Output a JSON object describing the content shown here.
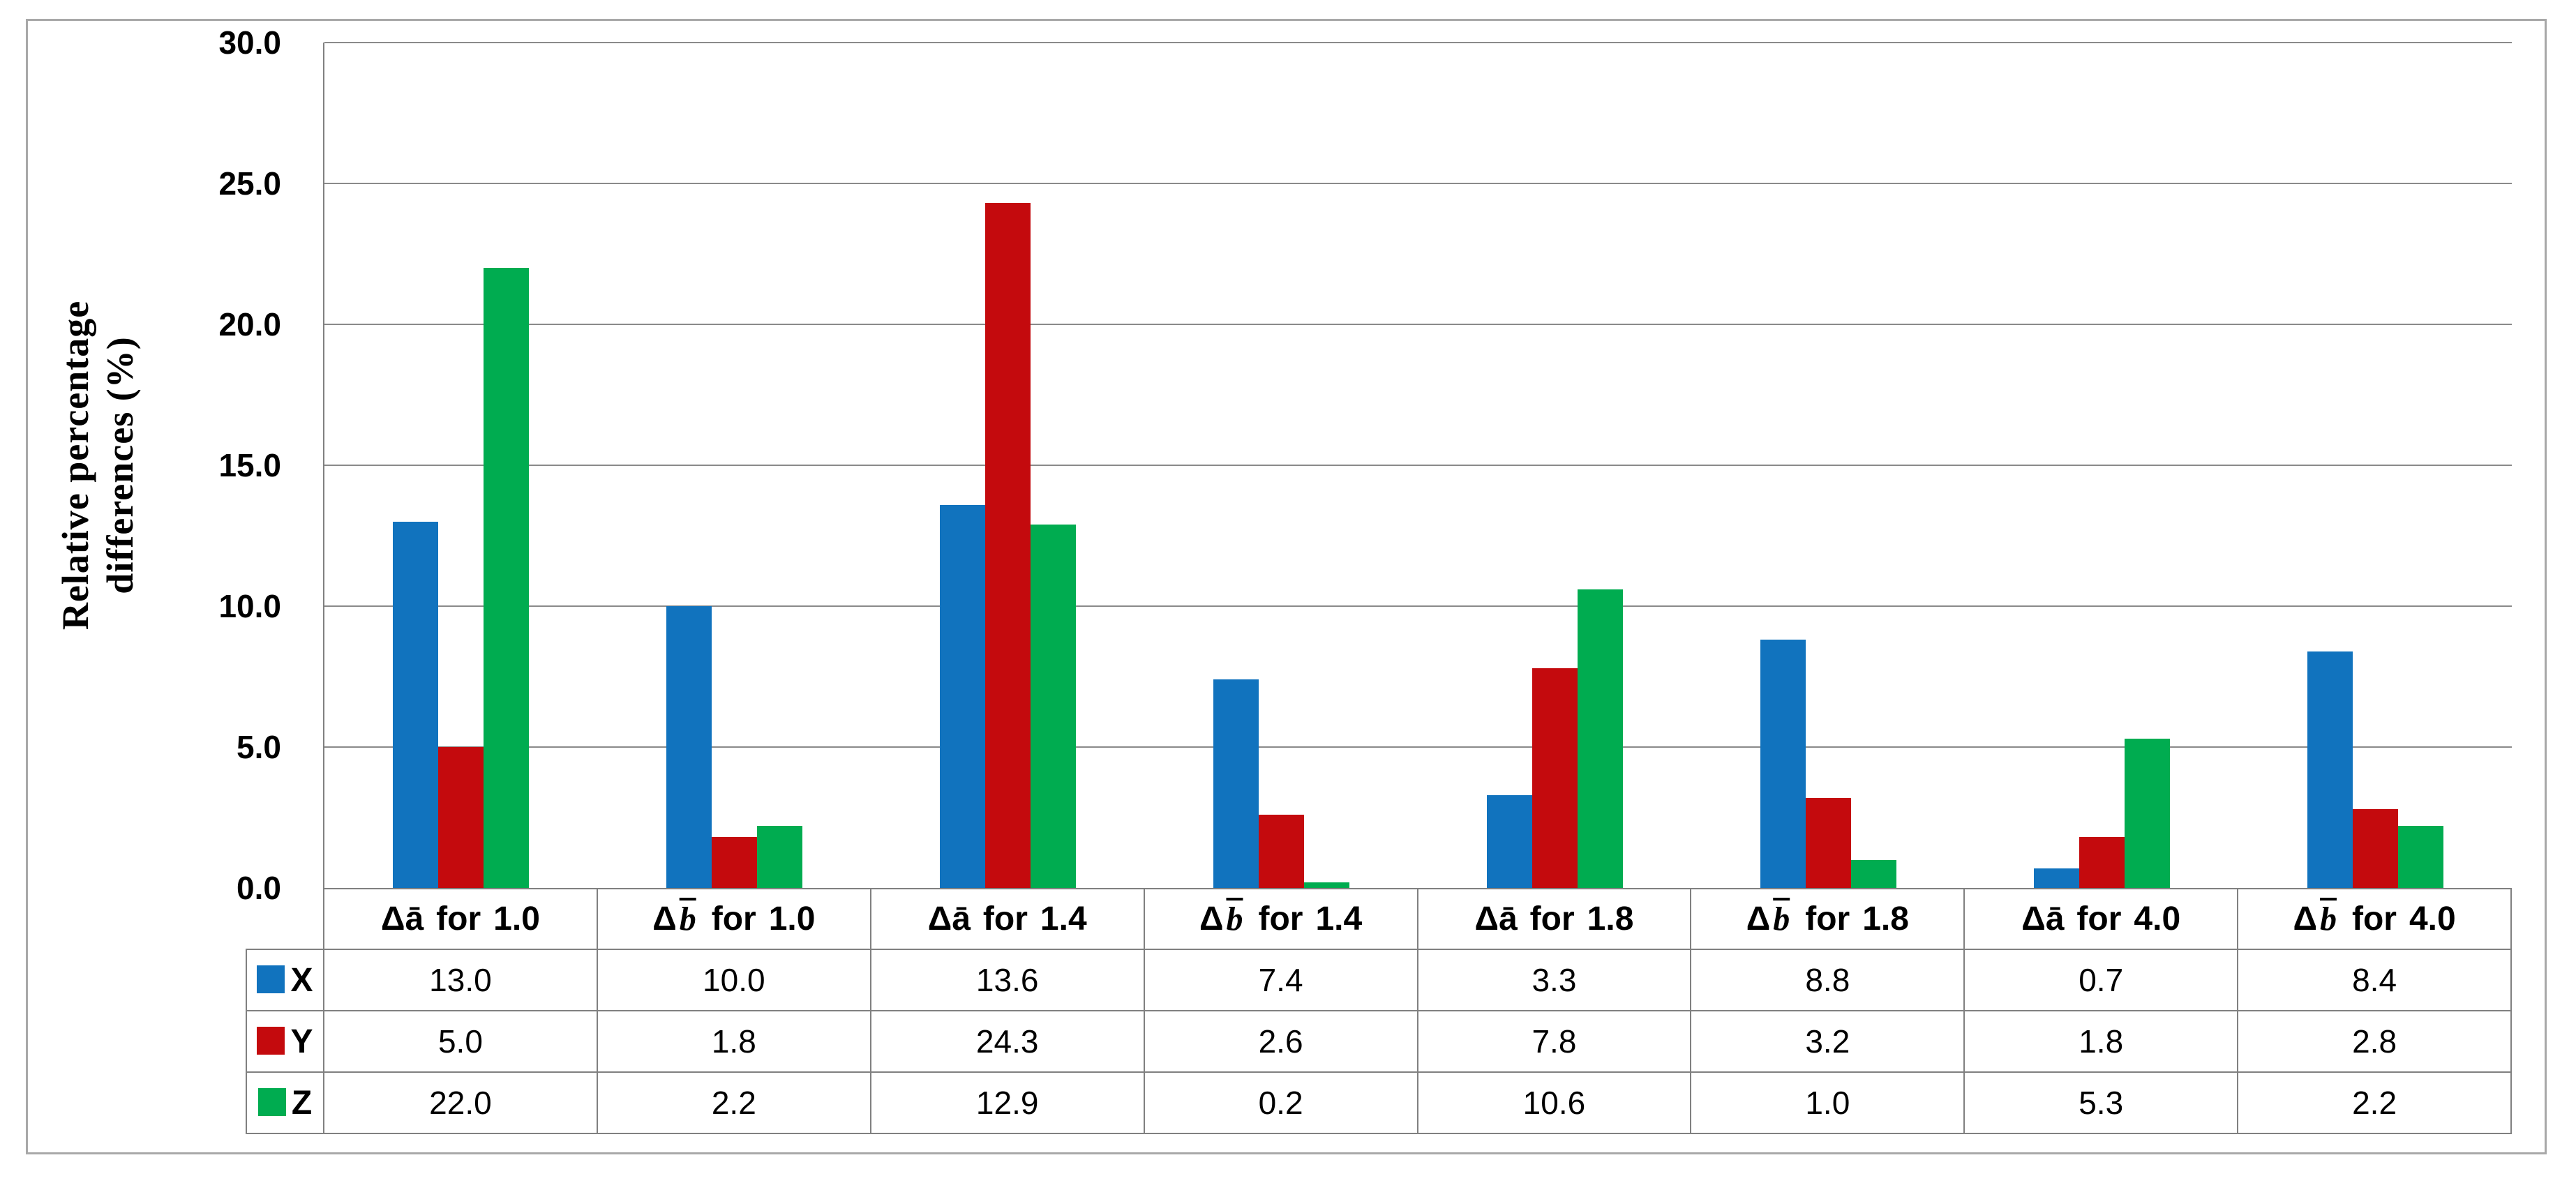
{
  "figure": {
    "background": "#ffffff",
    "frame_border_color": "#a8a8a8",
    "gridline_color": "#8a8a8a",
    "table_border_color": "#808080"
  },
  "chart_data": {
    "type": "bar",
    "title": "",
    "ylabel": "Relative percentage differences (%)",
    "ylabel_lines": [
      "Relative percentage",
      "differences (%)"
    ],
    "ylim": [
      0,
      30
    ],
    "ytick_step": 5,
    "ytick_labels": [
      "30.0",
      "25.0",
      "20.0",
      "15.0",
      "10.0",
      "5.0",
      "0.0"
    ],
    "grid": true,
    "legend_position": "data-table-left",
    "value_format_decimals": 1,
    "categories": [
      {
        "label": "Δā for 1.0",
        "var": "a",
        "scale": "1.0"
      },
      {
        "label": "Δb̄ for 1.0",
        "var": "b",
        "scale": "1.0"
      },
      {
        "label": "Δā for 1.4",
        "var": "a",
        "scale": "1.4"
      },
      {
        "label": "Δb̄ for 1.4",
        "var": "b",
        "scale": "1.4"
      },
      {
        "label": "Δā for 1.8",
        "var": "a",
        "scale": "1.8"
      },
      {
        "label": "Δb̄ for 1.8",
        "var": "b",
        "scale": "1.8"
      },
      {
        "label": "Δā for 4.0",
        "var": "a",
        "scale": "4.0"
      },
      {
        "label": "Δb̄ for 4.0",
        "var": "b",
        "scale": "4.0"
      }
    ],
    "series": [
      {
        "name": "X",
        "color": "#1173BE",
        "values": [
          13.0,
          10.0,
          13.6,
          7.4,
          3.3,
          8.8,
          0.7,
          8.4
        ]
      },
      {
        "name": "Y",
        "color": "#C40A0D",
        "values": [
          5.0,
          1.8,
          24.3,
          2.6,
          7.8,
          3.2,
          1.8,
          2.8
        ]
      },
      {
        "name": "Z",
        "color": "#00AC50",
        "values": [
          22.0,
          2.2,
          12.9,
          0.2,
          10.6,
          1.0,
          5.3,
          2.2
        ]
      }
    ]
  }
}
